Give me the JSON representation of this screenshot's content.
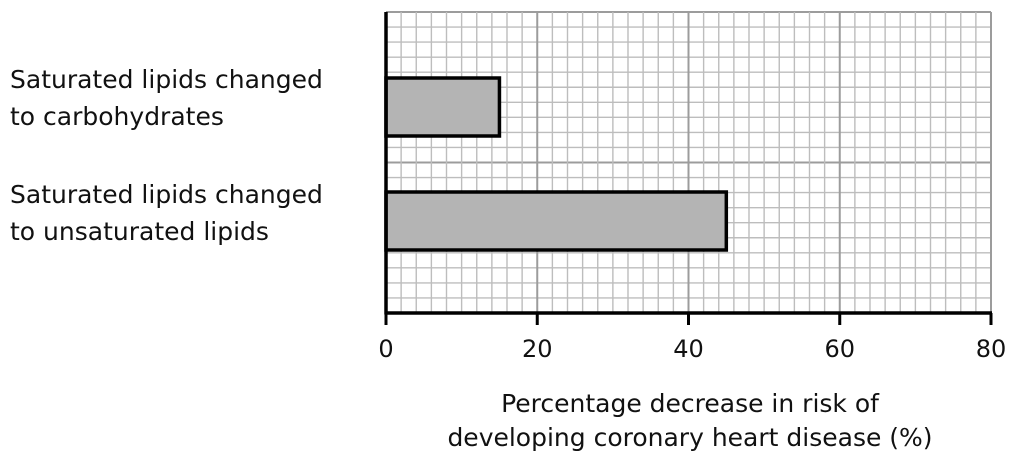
{
  "chart_data": {
    "type": "bar",
    "orientation": "horizontal",
    "categories": [
      [
        "Saturated lipids changed",
        "to carbohydrates"
      ],
      [
        "Saturated lipids changed",
        "to unsaturated lipids"
      ]
    ],
    "values": [
      15,
      45
    ],
    "xlabel_lines": [
      "Percentage decrease in risk of",
      "developing coronary heart disease (%)"
    ],
    "xlim": [
      0,
      80
    ],
    "xticks": [
      0,
      20,
      40,
      60,
      80
    ],
    "xtick_labels": [
      "0",
      "20",
      "40",
      "60",
      "80"
    ],
    "grid": "on",
    "minor_grid_step": 2,
    "major_grid_step": 20,
    "bar_color": "#b4b4b4",
    "grid_minor_color": "#bdbdbd",
    "grid_major_color": "#9c9c9c",
    "axis_color": "#000000"
  }
}
